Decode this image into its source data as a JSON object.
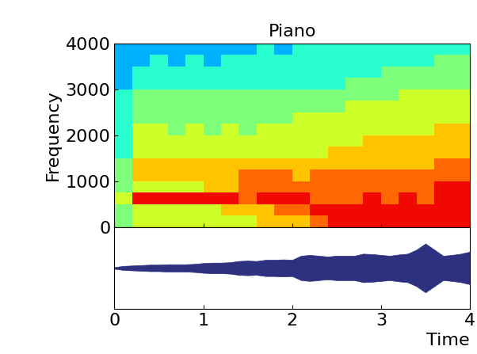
{
  "chart_data": [
    {
      "type": "heatmap",
      "title": "Piano",
      "y_label": "Frequency",
      "xlim": [
        0,
        4
      ],
      "ylim": [
        0,
        4000
      ],
      "xticks": [
        0,
        1,
        2,
        3,
        4
      ],
      "yticks": [
        0,
        1000,
        2000,
        3000,
        4000
      ],
      "tick_labels": "y",
      "time_edges": [
        0,
        0.2,
        0.4,
        0.6,
        0.8,
        1.0,
        1.2,
        1.4,
        1.6,
        1.8,
        2.0,
        2.2,
        2.4,
        2.6,
        2.8,
        3.0,
        3.2,
        3.4,
        3.6,
        3.8,
        4.0
      ],
      "frequency_edges": [
        0,
        250,
        500,
        750,
        1000,
        1250,
        1500,
        1750,
        2000,
        2250,
        2500,
        2750,
        3000,
        3250,
        3500,
        3750,
        4000
      ],
      "color_range": [
        0,
        10
      ],
      "cells": [
        [
          5,
          6,
          6,
          6,
          6,
          6,
          6,
          6,
          7,
          7,
          7,
          8,
          9,
          9,
          9,
          9,
          9,
          9,
          9,
          9
        ],
        [
          5,
          6,
          6,
          6,
          6,
          6,
          7,
          7,
          7,
          8,
          8,
          9,
          9,
          9,
          9,
          9,
          9,
          9,
          9,
          9
        ],
        [
          6,
          9,
          9,
          9,
          9,
          9,
          9,
          8,
          9,
          9,
          9,
          8,
          8,
          8,
          9,
          8,
          9,
          8,
          9,
          9
        ],
        [
          5,
          6,
          6,
          6,
          6,
          7,
          7,
          8,
          8,
          8,
          8,
          8,
          8,
          8,
          8,
          8,
          8,
          8,
          9,
          9
        ],
        [
          5,
          7,
          7,
          7,
          7,
          7,
          7,
          8,
          8,
          8,
          7,
          8,
          8,
          8,
          8,
          8,
          8,
          8,
          8,
          8
        ],
        [
          5,
          7,
          7,
          7,
          7,
          7,
          7,
          7,
          7,
          7,
          7,
          7,
          7,
          7,
          7,
          7,
          7,
          7,
          8,
          8
        ],
        [
          4,
          6,
          6,
          6,
          6,
          6,
          6,
          6,
          6,
          6,
          6,
          6,
          7,
          7,
          7,
          7,
          7,
          7,
          7,
          7
        ],
        [
          4,
          6,
          6,
          6,
          6,
          6,
          6,
          6,
          6,
          6,
          6,
          6,
          6,
          6,
          7,
          7,
          7,
          7,
          7,
          7
        ],
        [
          4,
          6,
          6,
          5,
          6,
          5,
          6,
          5,
          6,
          6,
          6,
          6,
          6,
          6,
          6,
          6,
          6,
          6,
          7,
          7
        ],
        [
          4,
          5,
          5,
          5,
          5,
          5,
          5,
          5,
          5,
          5,
          6,
          6,
          6,
          6,
          6,
          6,
          6,
          6,
          6,
          6
        ],
        [
          4,
          5,
          5,
          5,
          5,
          5,
          5,
          5,
          5,
          5,
          5,
          5,
          5,
          6,
          6,
          6,
          6,
          6,
          6,
          6
        ],
        [
          4,
          5,
          5,
          5,
          5,
          5,
          5,
          5,
          5,
          5,
          5,
          5,
          5,
          5,
          5,
          5,
          6,
          6,
          6,
          6
        ],
        [
          3,
          4,
          4,
          4,
          4,
          4,
          4,
          4,
          4,
          4,
          4,
          4,
          4,
          5,
          5,
          5,
          5,
          5,
          5,
          5
        ],
        [
          3,
          4,
          4,
          4,
          4,
          4,
          4,
          4,
          4,
          4,
          4,
          4,
          4,
          4,
          4,
          5,
          5,
          5,
          5,
          5
        ],
        [
          3,
          3,
          4,
          3,
          4,
          3,
          4,
          4,
          4,
          4,
          4,
          4,
          4,
          4,
          4,
          4,
          4,
          4,
          5,
          5
        ],
        [
          3,
          3,
          3,
          3,
          3,
          3,
          3,
          3,
          4,
          3,
          4,
          4,
          4,
          4,
          4,
          4,
          4,
          4,
          4,
          4
        ]
      ]
    },
    {
      "type": "area",
      "x_label": "Time",
      "color": "#2e3180",
      "xlim": [
        0,
        4
      ],
      "ylim": [
        -1,
        1
      ],
      "xticks": [
        0,
        1,
        2,
        3,
        4
      ],
      "tick_labels": "x",
      "x": [
        0,
        0.1,
        0.2,
        0.3,
        0.4,
        0.5,
        0.6,
        0.7,
        0.8,
        0.9,
        1.0,
        1.1,
        1.2,
        1.3,
        1.4,
        1.5,
        1.6,
        1.7,
        1.8,
        1.9,
        2.0,
        2.1,
        2.2,
        2.3,
        2.4,
        2.5,
        2.6,
        2.7,
        2.8,
        2.9,
        3.0,
        3.1,
        3.2,
        3.3,
        3.4,
        3.5,
        3.6,
        3.7,
        3.8,
        3.9,
        4.0
      ],
      "values": [
        0.02,
        0.05,
        0.06,
        0.07,
        0.08,
        0.08,
        0.09,
        0.09,
        0.09,
        0.1,
        0.12,
        0.13,
        0.13,
        0.14,
        0.17,
        0.18,
        0.17,
        0.2,
        0.2,
        0.21,
        0.2,
        0.3,
        0.32,
        0.3,
        0.28,
        0.3,
        0.3,
        0.3,
        0.35,
        0.34,
        0.32,
        0.3,
        0.33,
        0.35,
        0.45,
        0.6,
        0.45,
        0.3,
        0.32,
        0.35,
        0.4
      ]
    }
  ]
}
